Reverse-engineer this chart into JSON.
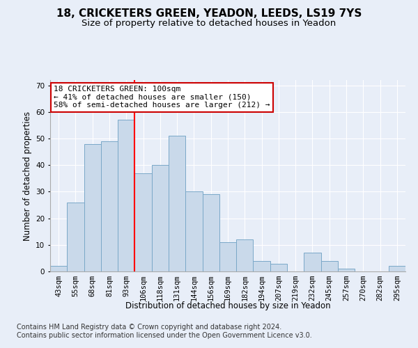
{
  "title": "18, CRICKETERS GREEN, YEADON, LEEDS, LS19 7YS",
  "subtitle": "Size of property relative to detached houses in Yeadon",
  "xlabel": "Distribution of detached houses by size in Yeadon",
  "ylabel": "Number of detached properties",
  "categories": [
    "43sqm",
    "55sqm",
    "68sqm",
    "81sqm",
    "93sqm",
    "106sqm",
    "118sqm",
    "131sqm",
    "144sqm",
    "156sqm",
    "169sqm",
    "182sqm",
    "194sqm",
    "207sqm",
    "219sqm",
    "232sqm",
    "245sqm",
    "257sqm",
    "270sqm",
    "282sqm",
    "295sqm"
  ],
  "values": [
    2,
    26,
    48,
    49,
    57,
    37,
    40,
    51,
    30,
    29,
    11,
    12,
    4,
    3,
    0,
    7,
    4,
    1,
    0,
    0,
    2
  ],
  "bar_color": "#c9d9ea",
  "bar_edge_color": "#7aa8c8",
  "annotation_text": "18 CRICKETERS GREEN: 100sqm\n← 41% of detached houses are smaller (150)\n58% of semi-detached houses are larger (212) →",
  "annotation_box_color": "#ffffff",
  "annotation_box_edge": "#cc0000",
  "ylim": [
    0,
    72
  ],
  "yticks": [
    0,
    10,
    20,
    30,
    40,
    50,
    60,
    70
  ],
  "footer": "Contains HM Land Registry data © Crown copyright and database right 2024.\nContains public sector information licensed under the Open Government Licence v3.0.",
  "background_color": "#e8eef8",
  "plot_background": "#e8eef8",
  "grid_color": "#ffffff",
  "title_fontsize": 11,
  "subtitle_fontsize": 9.5,
  "tick_fontsize": 7.5,
  "footer_fontsize": 7,
  "redline_x": 4.5
}
